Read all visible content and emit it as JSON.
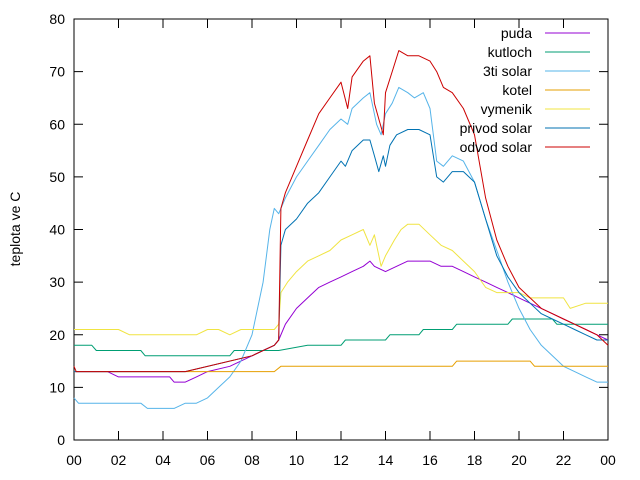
{
  "chart_data": {
    "type": "line",
    "title": "",
    "xlabel": "",
    "ylabel": "teplota ve C",
    "xlim": [
      0,
      24
    ],
    "ylim": [
      0,
      80
    ],
    "xticks": [
      "00",
      "02",
      "04",
      "06",
      "08",
      "10",
      "12",
      "14",
      "16",
      "18",
      "20",
      "22",
      "00"
    ],
    "yticks": [
      "0",
      "10",
      "20",
      "30",
      "40",
      "50",
      "60",
      "70",
      "80"
    ],
    "grid": false,
    "legend": "top-right",
    "series": [
      {
        "name": "puda",
        "color": "#9400d3",
        "points": [
          [
            0,
            13
          ],
          [
            1.5,
            13
          ],
          [
            2,
            12
          ],
          [
            3,
            12
          ],
          [
            4.3,
            12
          ],
          [
            4.5,
            11
          ],
          [
            5,
            11
          ],
          [
            5.5,
            12
          ],
          [
            6,
            13
          ],
          [
            7,
            14
          ],
          [
            8,
            16
          ],
          [
            8.5,
            17
          ],
          [
            9,
            18
          ],
          [
            9.2,
            19
          ],
          [
            9.5,
            22
          ],
          [
            10,
            25
          ],
          [
            10.5,
            27
          ],
          [
            11,
            29
          ],
          [
            11.5,
            30
          ],
          [
            12,
            31
          ],
          [
            12.5,
            32
          ],
          [
            13,
            33
          ],
          [
            13.3,
            34
          ],
          [
            13.5,
            33
          ],
          [
            14,
            32
          ],
          [
            14.5,
            33
          ],
          [
            15,
            34
          ],
          [
            16,
            34
          ],
          [
            16.5,
            33
          ],
          [
            17,
            33
          ],
          [
            17.5,
            32
          ],
          [
            18,
            31
          ],
          [
            18.5,
            30
          ],
          [
            19,
            29
          ],
          [
            19.5,
            28
          ],
          [
            20,
            27
          ],
          [
            20.5,
            26
          ],
          [
            21,
            25
          ],
          [
            21.5,
            24
          ],
          [
            22,
            23
          ],
          [
            22.5,
            22
          ],
          [
            23,
            21
          ],
          [
            23.5,
            20
          ],
          [
            24,
            19
          ]
        ]
      },
      {
        "name": "kutloch",
        "color": "#009e73",
        "points": [
          [
            0,
            18
          ],
          [
            0.8,
            18
          ],
          [
            1,
            17
          ],
          [
            3,
            17
          ],
          [
            3.2,
            16
          ],
          [
            7,
            16
          ],
          [
            7.2,
            17
          ],
          [
            9,
            17
          ],
          [
            9.2,
            17
          ],
          [
            10.5,
            18
          ],
          [
            12,
            18
          ],
          [
            12.2,
            19
          ],
          [
            14,
            19
          ],
          [
            14.2,
            20
          ],
          [
            15.5,
            20
          ],
          [
            15.7,
            21
          ],
          [
            17,
            21
          ],
          [
            17.2,
            22
          ],
          [
            19.5,
            22
          ],
          [
            19.7,
            23
          ],
          [
            21.5,
            23
          ],
          [
            21.7,
            22
          ],
          [
            24,
            22
          ]
        ]
      },
      {
        "name": "3ti solar",
        "color": "#56b4e9",
        "points": [
          [
            0,
            8
          ],
          [
            0.2,
            7
          ],
          [
            2.5,
            7
          ],
          [
            3,
            7
          ],
          [
            3.3,
            6
          ],
          [
            4.5,
            6
          ],
          [
            5,
            7
          ],
          [
            5.5,
            7
          ],
          [
            6,
            8
          ],
          [
            6.5,
            10
          ],
          [
            7,
            12
          ],
          [
            7.5,
            15
          ],
          [
            8,
            20
          ],
          [
            8.5,
            30
          ],
          [
            8.8,
            40
          ],
          [
            9,
            44
          ],
          [
            9.2,
            43
          ],
          [
            9.5,
            46
          ],
          [
            10,
            50
          ],
          [
            10.5,
            53
          ],
          [
            11,
            56
          ],
          [
            11.5,
            59
          ],
          [
            12,
            61
          ],
          [
            12.3,
            60
          ],
          [
            12.5,
            63
          ],
          [
            13,
            65
          ],
          [
            13.3,
            66
          ],
          [
            13.6,
            60
          ],
          [
            13.8,
            58
          ],
          [
            14,
            62
          ],
          [
            14.3,
            64
          ],
          [
            14.6,
            67
          ],
          [
            15,
            66
          ],
          [
            15.3,
            65
          ],
          [
            15.7,
            66
          ],
          [
            16,
            63
          ],
          [
            16.3,
            53
          ],
          [
            16.6,
            52
          ],
          [
            17,
            54
          ],
          [
            17.5,
            53
          ],
          [
            18,
            49
          ],
          [
            18.5,
            42
          ],
          [
            19,
            36
          ],
          [
            19.5,
            30
          ],
          [
            20,
            25
          ],
          [
            20.5,
            21
          ],
          [
            21,
            18
          ],
          [
            21.5,
            16
          ],
          [
            22,
            14
          ],
          [
            22.5,
            13
          ],
          [
            23,
            12
          ],
          [
            23.5,
            11
          ],
          [
            24,
            11
          ]
        ]
      },
      {
        "name": "kotel",
        "color": "#e69f00",
        "points": [
          [
            0,
            13
          ],
          [
            5,
            13
          ],
          [
            9,
            13
          ],
          [
            9.3,
            14
          ],
          [
            17,
            14
          ],
          [
            17.2,
            15
          ],
          [
            20.5,
            15
          ],
          [
            20.7,
            14
          ],
          [
            24,
            14
          ]
        ]
      },
      {
        "name": "vymenik",
        "color": "#f0e442",
        "points": [
          [
            0,
            21
          ],
          [
            1.5,
            21
          ],
          [
            2,
            21
          ],
          [
            2.5,
            20
          ],
          [
            3,
            20
          ],
          [
            5.5,
            20
          ],
          [
            6,
            21
          ],
          [
            6.5,
            21
          ],
          [
            7,
            20
          ],
          [
            7.5,
            21
          ],
          [
            8,
            21
          ],
          [
            9,
            21
          ],
          [
            9.2,
            22
          ],
          [
            9.3,
            28
          ],
          [
            9.6,
            30
          ],
          [
            10,
            32
          ],
          [
            10.5,
            34
          ],
          [
            11,
            35
          ],
          [
            11.5,
            36
          ],
          [
            12,
            38
          ],
          [
            12.5,
            39
          ],
          [
            13,
            40
          ],
          [
            13.3,
            37
          ],
          [
            13.5,
            39
          ],
          [
            13.8,
            33
          ],
          [
            14,
            35
          ],
          [
            14.4,
            38
          ],
          [
            14.7,
            40
          ],
          [
            15,
            41
          ],
          [
            15.5,
            41
          ],
          [
            16,
            39
          ],
          [
            16.5,
            37
          ],
          [
            17,
            36
          ],
          [
            17.5,
            34
          ],
          [
            18,
            32
          ],
          [
            18.5,
            29
          ],
          [
            19,
            28
          ],
          [
            19.5,
            28
          ],
          [
            20,
            28
          ],
          [
            20.5,
            27
          ],
          [
            21,
            27
          ],
          [
            21.5,
            27
          ],
          [
            22,
            27
          ],
          [
            22.3,
            25
          ],
          [
            23,
            26
          ],
          [
            24,
            26
          ]
        ]
      },
      {
        "name": "privod solar",
        "color": "#0072b2",
        "points": [
          [
            0,
            13
          ],
          [
            5,
            13
          ],
          [
            8,
            16
          ],
          [
            9,
            18
          ],
          [
            9.2,
            19
          ],
          [
            9.3,
            37
          ],
          [
            9.5,
            40
          ],
          [
            10,
            42
          ],
          [
            10.5,
            45
          ],
          [
            11,
            47
          ],
          [
            11.5,
            50
          ],
          [
            12,
            53
          ],
          [
            12.2,
            52
          ],
          [
            12.5,
            55
          ],
          [
            13,
            57
          ],
          [
            13.3,
            57
          ],
          [
            13.5,
            54
          ],
          [
            13.7,
            51
          ],
          [
            13.9,
            54
          ],
          [
            14,
            52
          ],
          [
            14.2,
            56
          ],
          [
            14.5,
            58
          ],
          [
            15,
            59
          ],
          [
            15.5,
            59
          ],
          [
            16,
            58
          ],
          [
            16.3,
            50
          ],
          [
            16.6,
            49
          ],
          [
            17,
            51
          ],
          [
            17.5,
            51
          ],
          [
            18,
            49
          ],
          [
            18.5,
            42
          ],
          [
            19,
            35
          ],
          [
            19.5,
            31
          ],
          [
            20,
            28
          ],
          [
            20.5,
            26
          ],
          [
            21,
            24
          ],
          [
            21.5,
            23
          ],
          [
            22,
            22
          ],
          [
            22.5,
            21
          ],
          [
            23,
            20
          ],
          [
            23.5,
            19
          ],
          [
            24,
            19
          ]
        ]
      },
      {
        "name": "odvod solar",
        "color": "#cc0000",
        "points": [
          [
            0,
            14
          ],
          [
            0.1,
            13
          ],
          [
            5,
            13
          ],
          [
            8,
            16
          ],
          [
            9,
            18
          ],
          [
            9.2,
            19
          ],
          [
            9.3,
            44
          ],
          [
            9.5,
            47
          ],
          [
            10,
            52
          ],
          [
            10.5,
            57
          ],
          [
            11,
            62
          ],
          [
            11.5,
            65
          ],
          [
            12,
            68
          ],
          [
            12.3,
            63
          ],
          [
            12.5,
            69
          ],
          [
            13,
            72
          ],
          [
            13.3,
            73
          ],
          [
            13.5,
            64
          ],
          [
            13.7,
            61
          ],
          [
            13.9,
            58
          ],
          [
            14,
            66
          ],
          [
            14.3,
            70
          ],
          [
            14.6,
            74
          ],
          [
            15,
            73
          ],
          [
            15.5,
            73
          ],
          [
            16,
            72
          ],
          [
            16.3,
            70
          ],
          [
            16.6,
            67
          ],
          [
            17,
            66
          ],
          [
            17.5,
            63
          ],
          [
            18,
            58
          ],
          [
            18.5,
            46
          ],
          [
            19,
            38
          ],
          [
            19.5,
            33
          ],
          [
            20,
            29
          ],
          [
            20.5,
            27
          ],
          [
            21,
            25
          ],
          [
            21.5,
            24
          ],
          [
            22,
            23
          ],
          [
            22.5,
            22
          ],
          [
            23,
            21
          ],
          [
            23.5,
            20
          ],
          [
            24,
            18
          ]
        ]
      }
    ]
  }
}
